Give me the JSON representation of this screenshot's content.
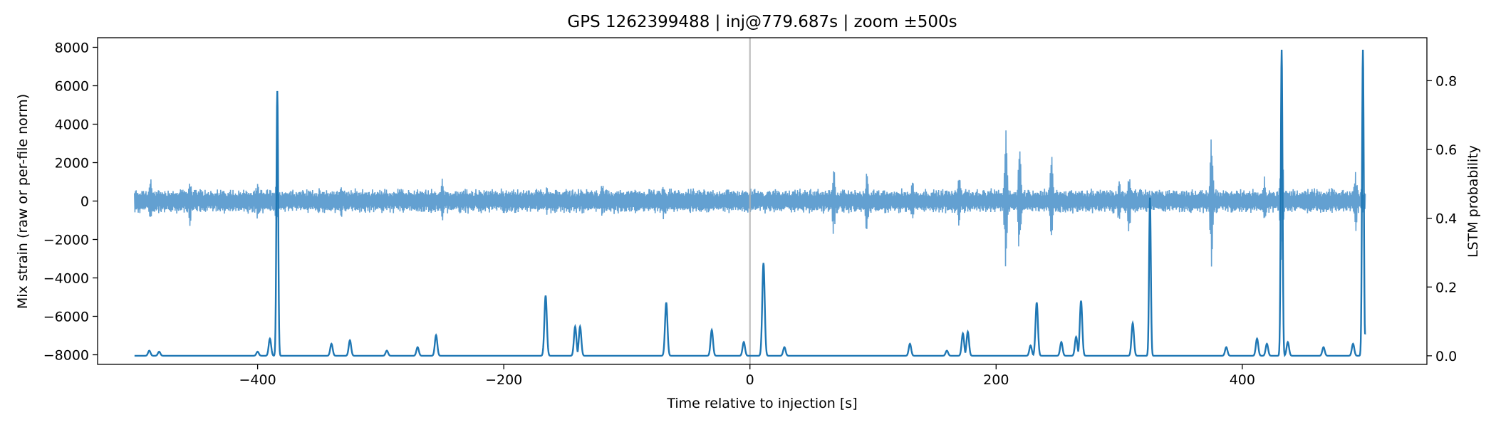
{
  "chart_data": {
    "type": "line",
    "title": "GPS 1262399488 | inj@779.687s | zoom ±500s",
    "xlabel": "Time relative to injection [s]",
    "ylabel_left": "Mix strain (raw or per-file norm)",
    "ylabel_right": "LSTM probability",
    "xlim": [
      -530,
      550
    ],
    "ylim_left": [
      -8500,
      8500
    ],
    "ylim_right": [
      -0.025,
      0.925
    ],
    "xticks": [
      -400,
      -200,
      0,
      200,
      400
    ],
    "yticks_left": [
      -8000,
      -6000,
      -4000,
      -2000,
      0,
      2000,
      4000,
      6000,
      8000
    ],
    "yticks_right": [
      0.0,
      0.2,
      0.4,
      0.6,
      0.8
    ],
    "injection_marker_x": 0,
    "grid": false,
    "colors": {
      "strain": "#5b9bcf",
      "probability": "#1f77b4",
      "marker": "#b3b3b3"
    },
    "strain": {
      "x_range": [
        -500,
        500
      ],
      "base_amplitude": 550,
      "bursts": [
        {
          "t": -487,
          "amp": 1200
        },
        {
          "t": -455,
          "amp": 1350
        },
        {
          "t": -400,
          "amp": 1050
        },
        {
          "t": -385,
          "amp": 1050
        },
        {
          "t": -332,
          "amp": 950
        },
        {
          "t": -250,
          "amp": 1300
        },
        {
          "t": -165,
          "amp": 900
        },
        {
          "t": -120,
          "amp": 950
        },
        {
          "t": -70,
          "amp": 1000
        },
        {
          "t": 0,
          "amp": 700
        },
        {
          "t": 68,
          "amp": 1800
        },
        {
          "t": 95,
          "amp": 1700
        },
        {
          "t": 132,
          "amp": 1200
        },
        {
          "t": 170,
          "amp": 1500
        },
        {
          "t": 208,
          "amp": 3700
        },
        {
          "t": 219,
          "amp": 3100
        },
        {
          "t": 245,
          "amp": 2600
        },
        {
          "t": 300,
          "amp": 1300
        },
        {
          "t": 308,
          "amp": 1700
        },
        {
          "t": 375,
          "amp": 3500
        },
        {
          "t": 418,
          "amp": 1300
        },
        {
          "t": 432,
          "amp": 3300
        },
        {
          "t": 492,
          "amp": 1700
        }
      ]
    },
    "probability": {
      "baseline": 0.0,
      "peaks": [
        {
          "t": -488,
          "p": 0.015
        },
        {
          "t": -480,
          "p": 0.012
        },
        {
          "t": -400,
          "p": 0.012
        },
        {
          "t": -390,
          "p": 0.05
        },
        {
          "t": -384,
          "p": 0.77
        },
        {
          "t": -340,
          "p": 0.035
        },
        {
          "t": -325,
          "p": 0.045
        },
        {
          "t": -295,
          "p": 0.015
        },
        {
          "t": -270,
          "p": 0.025
        },
        {
          "t": -255,
          "p": 0.06
        },
        {
          "t": -166,
          "p": 0.175
        },
        {
          "t": -142,
          "p": 0.085
        },
        {
          "t": -138,
          "p": 0.085
        },
        {
          "t": -68,
          "p": 0.155
        },
        {
          "t": -31,
          "p": 0.075
        },
        {
          "t": -5,
          "p": 0.04
        },
        {
          "t": 11,
          "p": 0.27
        },
        {
          "t": 28,
          "p": 0.025
        },
        {
          "t": 130,
          "p": 0.035
        },
        {
          "t": 160,
          "p": 0.015
        },
        {
          "t": 173,
          "p": 0.065
        },
        {
          "t": 177,
          "p": 0.07
        },
        {
          "t": 228,
          "p": 0.03
        },
        {
          "t": 233,
          "p": 0.155
        },
        {
          "t": 253,
          "p": 0.04
        },
        {
          "t": 265,
          "p": 0.055
        },
        {
          "t": 269,
          "p": 0.16
        },
        {
          "t": 311,
          "p": 0.095
        },
        {
          "t": 325,
          "p": 0.46
        },
        {
          "t": 387,
          "p": 0.025
        },
        {
          "t": 412,
          "p": 0.05
        },
        {
          "t": 420,
          "p": 0.035
        },
        {
          "t": 432,
          "p": 0.89
        },
        {
          "t": 437,
          "p": 0.04
        },
        {
          "t": 466,
          "p": 0.025
        },
        {
          "t": 490,
          "p": 0.035
        },
        {
          "t": 498,
          "p": 0.89
        },
        {
          "t": 500,
          "p": 0.065
        }
      ]
    }
  }
}
